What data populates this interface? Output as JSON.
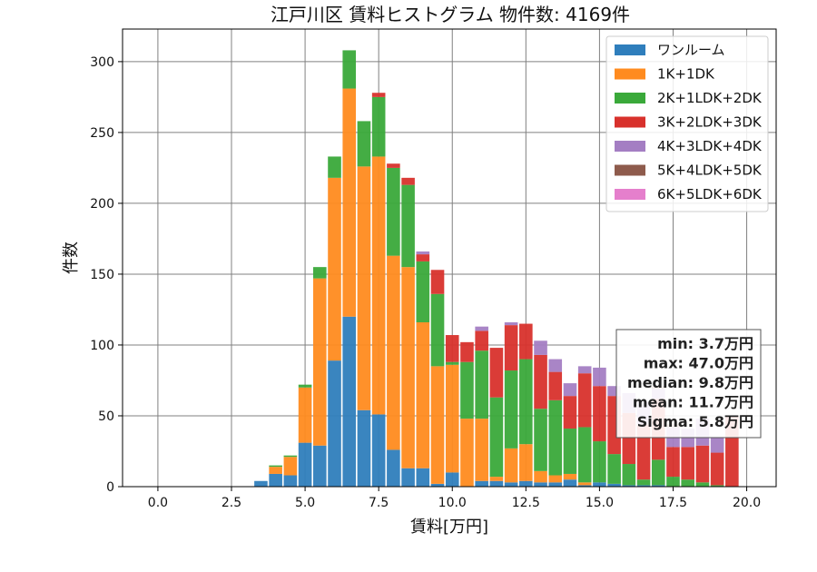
{
  "chart_data": {
    "type": "bar",
    "stacked": true,
    "title": "江戸川区 賃料ヒストグラム  物件数: 4169件",
    "xlabel": "賃料[万円]",
    "ylabel": "件数",
    "xlim": [
      -1.2,
      21.0
    ],
    "ylim": [
      0,
      323
    ],
    "xticks": [
      0.0,
      2.5,
      5.0,
      7.5,
      10.0,
      12.5,
      15.0,
      17.5,
      20.0
    ],
    "yticks": [
      0,
      50,
      100,
      150,
      200,
      250,
      300
    ],
    "grid": true,
    "legend_position": "top-right",
    "bin_width": 0.5,
    "x": [
      3.5,
      4.0,
      4.5,
      5.0,
      5.5,
      6.0,
      6.5,
      7.0,
      7.5,
      8.0,
      8.5,
      9.0,
      9.5,
      10.0,
      10.5,
      11.0,
      11.5,
      12.0,
      12.5,
      13.0,
      13.5,
      14.0,
      14.5,
      15.0,
      15.5,
      16.0,
      16.5,
      17.0,
      17.5,
      18.0,
      18.5,
      19.0,
      19.5
    ],
    "series": [
      {
        "name": "ワンルーム",
        "color": "#2f7ebc",
        "values": [
          4,
          9,
          8,
          31,
          29,
          89,
          120,
          54,
          51,
          26,
          13,
          13,
          2,
          10,
          0,
          4,
          4,
          3,
          4,
          3,
          3,
          5,
          1,
          3,
          2,
          1,
          1,
          1,
          0,
          0,
          0,
          0,
          0
        ]
      },
      {
        "name": "1K+1DK",
        "color": "#ff8b1f",
        "values": [
          0,
          5,
          13,
          39,
          118,
          129,
          161,
          172,
          182,
          137,
          142,
          103,
          83,
          76,
          48,
          44,
          3,
          24,
          26,
          8,
          5,
          4,
          2,
          0,
          0,
          0,
          0,
          0,
          0,
          0,
          0,
          0,
          0
        ]
      },
      {
        "name": "2K+1LDK+2DK",
        "color": "#3aa93a",
        "values": [
          0,
          1,
          1,
          2,
          8,
          15,
          27,
          32,
          42,
          62,
          58,
          43,
          51,
          2,
          40,
          48,
          56,
          55,
          60,
          44,
          53,
          32,
          39,
          29,
          21,
          15,
          4,
          18,
          7,
          5,
          3,
          1,
          0
        ]
      },
      {
        "name": "3K+2LDK+3DK",
        "color": "#d8312c",
        "values": [
          0,
          0,
          0,
          0,
          0,
          0,
          0,
          0,
          3,
          3,
          5,
          5,
          17,
          19,
          14,
          14,
          35,
          32,
          25,
          38,
          20,
          23,
          38,
          39,
          41,
          36,
          39,
          43,
          21,
          23,
          26,
          23,
          50
        ]
      },
      {
        "name": "4K+3LDK+4DK",
        "color": "#a47ec3",
        "values": [
          0,
          0,
          0,
          0,
          0,
          0,
          0,
          0,
          0,
          0,
          0,
          2,
          0,
          0,
          0,
          3,
          0,
          2,
          0,
          10,
          9,
          9,
          5,
          13,
          7,
          14,
          16,
          7,
          14,
          13,
          19,
          11,
          0
        ]
      },
      {
        "name": "5K+4LDK+5DK",
        "color": "#8e5b4c",
        "values": [
          0,
          0,
          0,
          0,
          0,
          0,
          0,
          0,
          0,
          0,
          0,
          0,
          0,
          0,
          0,
          0,
          0,
          0,
          0,
          0,
          0,
          0,
          0,
          0,
          0,
          0,
          0,
          2,
          2,
          0,
          0,
          0,
          0
        ]
      },
      {
        "name": "6K+5LDK+6DK",
        "color": "#e57fcc",
        "values": [
          0,
          0,
          0,
          0,
          0,
          0,
          0,
          0,
          0,
          0,
          0,
          0,
          0,
          0,
          0,
          0,
          0,
          0,
          0,
          0,
          0,
          0,
          0,
          0,
          0,
          0,
          0,
          0,
          0,
          0,
          0,
          0,
          0
        ]
      }
    ],
    "stats": [
      "min: 3.7万円",
      "max: 47.0万円",
      "median: 9.8万円",
      "mean: 11.7万円",
      "Sigma: 5.8万円"
    ]
  }
}
